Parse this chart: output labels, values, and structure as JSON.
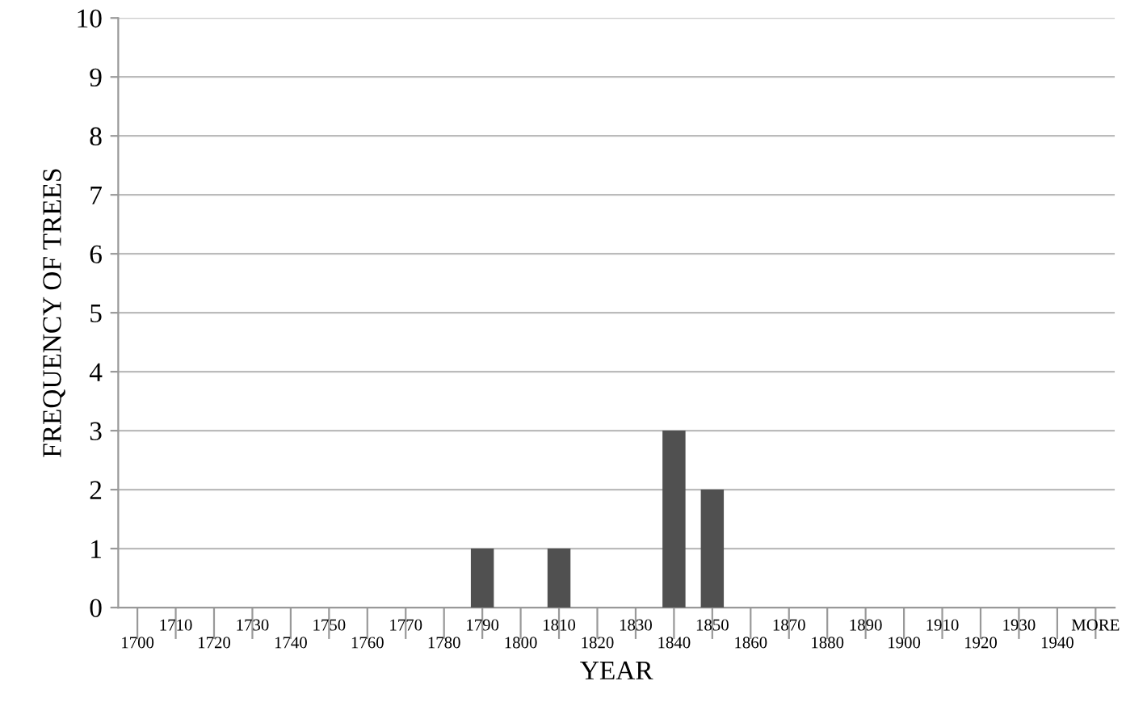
{
  "chart_data": {
    "type": "bar",
    "xlabel": "YEAR",
    "ylabel": "FREQUENCY OF TREES",
    "categories": [
      "1700",
      "1710",
      "1720",
      "1730",
      "1740",
      "1750",
      "1760",
      "1770",
      "1780",
      "1790",
      "1800",
      "1810",
      "1820",
      "1830",
      "1840",
      "1850",
      "1860",
      "1870",
      "1880",
      "1890",
      "1900",
      "1910",
      "1920",
      "1930",
      "1940",
      "MORE"
    ],
    "values": [
      0,
      0,
      0,
      0,
      0,
      0,
      0,
      0,
      0,
      1,
      0,
      1,
      0,
      0,
      3,
      2,
      0,
      0,
      0,
      0,
      0,
      0,
      0,
      0,
      0,
      0
    ],
    "color": "#505050",
    "ylim": [
      0,
      10
    ],
    "yticks": [
      0,
      1,
      2,
      3,
      4,
      5,
      6,
      7,
      8,
      9,
      10
    ],
    "grid": "y"
  }
}
